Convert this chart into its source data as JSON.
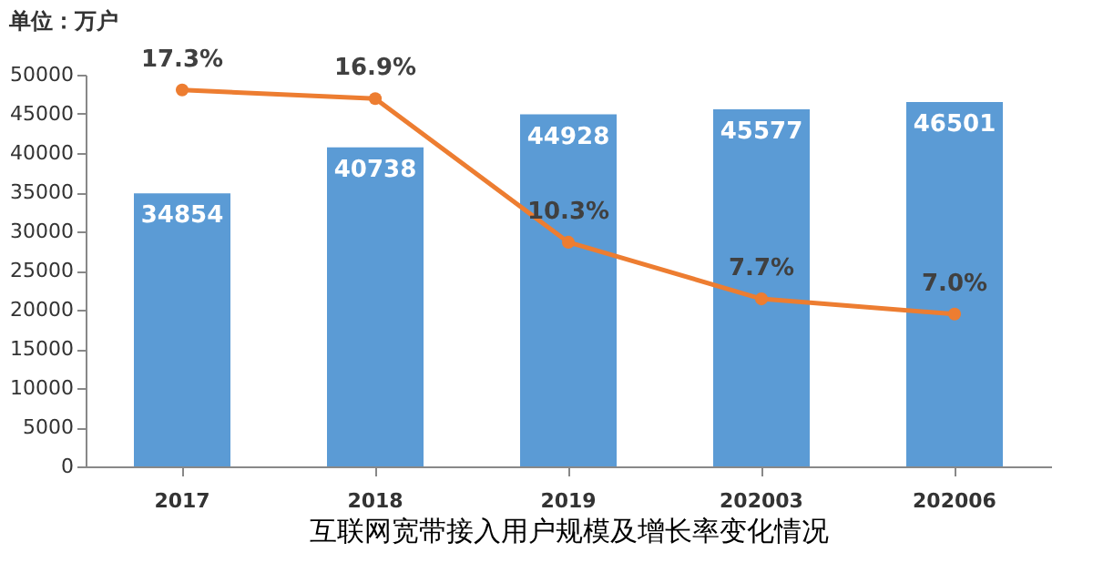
{
  "chart_data": {
    "type": "bar",
    "ylabel": "单位：万户",
    "xlabel": "互联网宽带接入用户规模及增长率变化情况",
    "categories": [
      "2017",
      "2018",
      "2019",
      "202003",
      "202006"
    ],
    "series": [
      {
        "color": "#5b9bd5",
        "values": [
          34854,
          40738,
          44928,
          45577,
          46501
        ],
        "value_labels": [
          "34854",
          "40738",
          "44928",
          "45577",
          "46501"
        ]
      },
      {
        "type": "line",
        "axis": "y2",
        "color": "#ed7d31",
        "marker": "circle",
        "values": [
          17.3,
          16.9,
          10.3,
          7.7,
          7.0
        ],
        "value_labels": [
          "17.3%",
          "16.9%",
          "10.3%",
          "7.7%",
          "7.0%"
        ]
      }
    ],
    "ylim": [
      0,
      50000
    ],
    "yticks": [
      0,
      5000,
      10000,
      15000,
      20000,
      25000,
      30000,
      35000,
      40000,
      45000,
      50000
    ],
    "grid": false
  }
}
